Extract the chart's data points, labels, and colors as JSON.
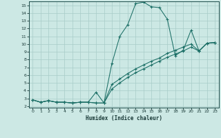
{
  "xlabel": "Humidex (Indice chaleur)",
  "bg_color": "#cce8e4",
  "grid_color": "#a8ccc8",
  "line_color": "#1a6e65",
  "xlim": [
    -0.5,
    23.5
  ],
  "ylim": [
    1.8,
    15.5
  ],
  "xticks": [
    0,
    1,
    2,
    3,
    4,
    5,
    6,
    7,
    8,
    9,
    10,
    11,
    12,
    13,
    14,
    15,
    16,
    17,
    18,
    19,
    20,
    21,
    22,
    23
  ],
  "yticks": [
    2,
    3,
    4,
    5,
    6,
    7,
    8,
    9,
    10,
    11,
    12,
    13,
    14,
    15
  ],
  "line1_x": [
    0,
    1,
    2,
    3,
    4,
    5,
    6,
    7,
    8,
    9,
    10,
    11,
    12,
    13,
    14,
    15,
    16,
    17,
    18,
    19,
    20,
    21,
    22,
    23
  ],
  "line1_y": [
    2.8,
    2.5,
    2.7,
    2.5,
    2.5,
    2.4,
    2.5,
    2.5,
    2.4,
    2.4,
    7.5,
    11.0,
    12.5,
    15.2,
    15.4,
    14.8,
    14.7,
    13.2,
    8.5,
    9.2,
    11.8,
    9.1,
    10.1,
    10.2
  ],
  "line2_x": [
    0,
    1,
    2,
    3,
    4,
    5,
    6,
    7,
    8,
    9,
    10,
    11,
    12,
    13,
    14,
    15,
    16,
    17,
    18,
    19,
    20,
    21,
    22,
    23
  ],
  "line2_y": [
    2.8,
    2.5,
    2.7,
    2.5,
    2.5,
    2.4,
    2.5,
    2.5,
    2.4,
    2.4,
    4.8,
    5.5,
    6.2,
    6.8,
    7.3,
    7.8,
    8.2,
    8.8,
    9.2,
    9.6,
    10.0,
    9.1,
    10.1,
    10.2
  ],
  "line3_x": [
    0,
    1,
    2,
    3,
    4,
    5,
    6,
    7,
    8,
    9,
    10,
    11,
    12,
    13,
    14,
    15,
    16,
    17,
    18,
    19,
    20,
    21,
    22,
    23
  ],
  "line3_y": [
    2.8,
    2.5,
    2.7,
    2.5,
    2.5,
    2.4,
    2.5,
    2.5,
    3.8,
    2.4,
    4.2,
    5.0,
    5.7,
    6.3,
    6.8,
    7.3,
    7.8,
    8.3,
    8.7,
    9.1,
    9.6,
    9.1,
    10.1,
    10.2
  ]
}
